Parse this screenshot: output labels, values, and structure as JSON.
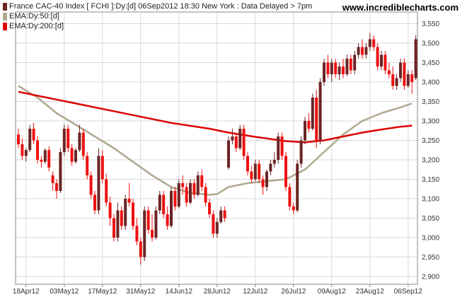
{
  "header": {
    "title": "France CAC-40 Index [ FCHI ]:Dy:[d]  06Sep2012 18:30 New York : Data Delayed > 7pm",
    "site": "www.incrediblecharts.com",
    "legend": [
      {
        "label": "EMA:Dy:50:[d]",
        "color": "#b0a890"
      },
      {
        "label": "EMA:Dy:200:[d]",
        "color": "#dd0000"
      }
    ],
    "title_swatch_color": "#6b2424"
  },
  "colors": {
    "up": "#6b2424",
    "down": "#ee1111",
    "ema50": "#b0a890",
    "ema200": "#dd0000",
    "grid": "#d8d8d8",
    "frame": "#888888"
  },
  "chart_data": {
    "type": "candlestick",
    "title": "France CAC-40 Index [ FCHI ]:Dy:[d]  06Sep2012 18:30 New York : Data Delayed > 7pm",
    "ylim": [
      2880,
      3580
    ],
    "y_ticks": [
      "2,900",
      "2,950",
      "3,000",
      "3,050",
      "3,100",
      "3,150",
      "3,200",
      "3,250",
      "3,300",
      "3,350",
      "3,400",
      "3,450",
      "3,500",
      "3,550"
    ],
    "x_ticks": [
      {
        "label": "18Apr12",
        "index": 2
      },
      {
        "label": "03May12",
        "index": 12
      },
      {
        "label": "17May12",
        "index": 22
      },
      {
        "label": "31May12",
        "index": 32
      },
      {
        "label": "14Jun12",
        "index": 42
      },
      {
        "label": "28Jun12",
        "index": 52
      },
      {
        "label": "12Jul12",
        "index": 62
      },
      {
        "label": "26Jul12",
        "index": 72
      },
      {
        "label": "09Aug12",
        "index": 82
      },
      {
        "label": "23Aug12",
        "index": 92
      },
      {
        "label": "06Sep12",
        "index": 102
      }
    ],
    "grid": true,
    "candles": [
      [
        3265,
        3280,
        3230,
        3240
      ],
      [
        3240,
        3255,
        3200,
        3210
      ],
      [
        3210,
        3230,
        3195,
        3225
      ],
      [
        3225,
        3290,
        3220,
        3280
      ],
      [
        3280,
        3295,
        3240,
        3250
      ],
      [
        3250,
        3260,
        3190,
        3200
      ],
      [
        3200,
        3210,
        3180,
        3195
      ],
      [
        3195,
        3230,
        3190,
        3225
      ],
      [
        3225,
        3235,
        3170,
        3180
      ],
      [
        3160,
        3170,
        3120,
        3140
      ],
      [
        3140,
        3150,
        3100,
        3120
      ],
      [
        3120,
        3230,
        3115,
        3220
      ],
      [
        3220,
        3290,
        3210,
        3280
      ],
      [
        3280,
        3290,
        3220,
        3230
      ],
      [
        3230,
        3240,
        3185,
        3195
      ],
      [
        3195,
        3230,
        3190,
        3225
      ],
      [
        3225,
        3290,
        3220,
        3270
      ],
      [
        3270,
        3280,
        3200,
        3210
      ],
      [
        3210,
        3220,
        3150,
        3160
      ],
      [
        3160,
        3170,
        3100,
        3110
      ],
      [
        3110,
        3120,
        3060,
        3070
      ],
      [
        3070,
        3230,
        3060,
        3210
      ],
      [
        3210,
        3225,
        3140,
        3150
      ],
      [
        3150,
        3165,
        3080,
        3090
      ],
      [
        3090,
        3105,
        3030,
        3050
      ],
      [
        3050,
        3060,
        2990,
        3000
      ],
      [
        3000,
        3090,
        2990,
        3070
      ],
      [
        3070,
        3080,
        3020,
        3030
      ],
      [
        3030,
        3110,
        3020,
        3100
      ],
      [
        3100,
        3140,
        3080,
        3090
      ],
      [
        3090,
        3100,
        3020,
        3030
      ],
      [
        3030,
        3050,
        2980,
        2990
      ],
      [
        2990,
        3000,
        2930,
        2950
      ],
      [
        2950,
        3080,
        2940,
        3070
      ],
      [
        3070,
        3080,
        3010,
        3020
      ],
      [
        3020,
        3060,
        2990,
        3000
      ],
      [
        3000,
        3080,
        2995,
        3070
      ],
      [
        3070,
        3120,
        3060,
        3110
      ],
      [
        3110,
        3120,
        3050,
        3060
      ],
      [
        3060,
        3080,
        3020,
        3030
      ],
      [
        3030,
        3130,
        3025,
        3120
      ],
      [
        3120,
        3130,
        3070,
        3080
      ],
      [
        3080,
        3150,
        3075,
        3140
      ],
      [
        3140,
        3160,
        3110,
        3130
      ],
      [
        3130,
        3140,
        3080,
        3090
      ],
      [
        3090,
        3150,
        3085,
        3140
      ],
      [
        3140,
        3150,
        3100,
        3110
      ],
      [
        3110,
        3170,
        3105,
        3160
      ],
      [
        3160,
        3175,
        3120,
        3130
      ],
      [
        3130,
        3140,
        3080,
        3090
      ],
      [
        3090,
        3100,
        3050,
        3060
      ],
      [
        3060,
        3070,
        3000,
        3010
      ],
      [
        3010,
        3050,
        3000,
        3040
      ],
      [
        3040,
        3080,
        3035,
        3070
      ],
      [
        3070,
        3080,
        3040,
        3050
      ],
      [
        3180,
        3260,
        3175,
        3250
      ],
      [
        3250,
        3280,
        3240,
        3260
      ],
      [
        3260,
        3270,
        3220,
        3230
      ],
      [
        3230,
        3290,
        3225,
        3280
      ],
      [
        3280,
        3290,
        3200,
        3210
      ],
      [
        3210,
        3220,
        3160,
        3170
      ],
      [
        3170,
        3185,
        3140,
        3150
      ],
      [
        3150,
        3200,
        3145,
        3190
      ],
      [
        3190,
        3200,
        3140,
        3150
      ],
      [
        3150,
        3160,
        3110,
        3130
      ],
      [
        3130,
        3175,
        3120,
        3170
      ],
      [
        3170,
        3200,
        3160,
        3190
      ],
      [
        3190,
        3220,
        3180,
        3200
      ],
      [
        3200,
        3270,
        3190,
        3260
      ],
      [
        3260,
        3270,
        3200,
        3210
      ],
      [
        3210,
        3220,
        3120,
        3130
      ],
      [
        3130,
        3140,
        3070,
        3080
      ],
      [
        3080,
        3090,
        3060,
        3070
      ],
      [
        3070,
        3200,
        3065,
        3190
      ],
      [
        3190,
        3260,
        3180,
        3250
      ],
      [
        3250,
        3310,
        3240,
        3300
      ],
      [
        3300,
        3320,
        3270,
        3280
      ],
      [
        3280,
        3370,
        3275,
        3360
      ],
      [
        3360,
        3380,
        3230,
        3250
      ],
      [
        3250,
        3410,
        3240,
        3400
      ],
      [
        3400,
        3460,
        3390,
        3450
      ],
      [
        3450,
        3470,
        3410,
        3420
      ],
      [
        3420,
        3460,
        3400,
        3450
      ],
      [
        3450,
        3460,
        3410,
        3420
      ],
      [
        3420,
        3450,
        3405,
        3440
      ],
      [
        3440,
        3460,
        3410,
        3420
      ],
      [
        3420,
        3470,
        3415,
        3460
      ],
      [
        3460,
        3470,
        3420,
        3430
      ],
      [
        3430,
        3480,
        3420,
        3470
      ],
      [
        3470,
        3500,
        3460,
        3490
      ],
      [
        3490,
        3510,
        3460,
        3470
      ],
      [
        3470,
        3500,
        3460,
        3490
      ],
      [
        3490,
        3525,
        3480,
        3510
      ],
      [
        3510,
        3520,
        3480,
        3490
      ],
      [
        3490,
        3500,
        3430,
        3440
      ],
      [
        3440,
        3480,
        3430,
        3470
      ],
      [
        3470,
        3480,
        3420,
        3430
      ],
      [
        3430,
        3450,
        3410,
        3420
      ],
      [
        3420,
        3440,
        3380,
        3390
      ],
      [
        3390,
        3420,
        3380,
        3410
      ],
      [
        3410,
        3460,
        3400,
        3450
      ],
      [
        3450,
        3460,
        3380,
        3390
      ],
      [
        3390,
        3430,
        3385,
        3420
      ],
      [
        3420,
        3430,
        3370,
        3400
      ],
      [
        3410,
        3520,
        3405,
        3510
      ]
    ],
    "series": [
      {
        "name": "EMA:Dy:50:[d]",
        "color": "#b0a890",
        "x": [
          0,
          5,
          10,
          15,
          20,
          25,
          30,
          35,
          40,
          45,
          50,
          52,
          55,
          60,
          65,
          70,
          75,
          80,
          85,
          90,
          95,
          100,
          103
        ],
        "values": [
          3390,
          3360,
          3320,
          3290,
          3260,
          3230,
          3195,
          3160,
          3130,
          3115,
          3110,
          3112,
          3130,
          3140,
          3145,
          3150,
          3175,
          3220,
          3265,
          3300,
          3320,
          3335,
          3345
        ]
      },
      {
        "name": "EMA:Dy:200:[d]",
        "color": "#dd0000",
        "x": [
          0,
          10,
          20,
          30,
          40,
          50,
          55,
          60,
          65,
          70,
          75,
          80,
          85,
          90,
          95,
          100,
          103
        ],
        "values": [
          3375,
          3355,
          3335,
          3315,
          3295,
          3280,
          3270,
          3262,
          3255,
          3248,
          3245,
          3250,
          3260,
          3270,
          3278,
          3285,
          3288
        ]
      }
    ]
  }
}
